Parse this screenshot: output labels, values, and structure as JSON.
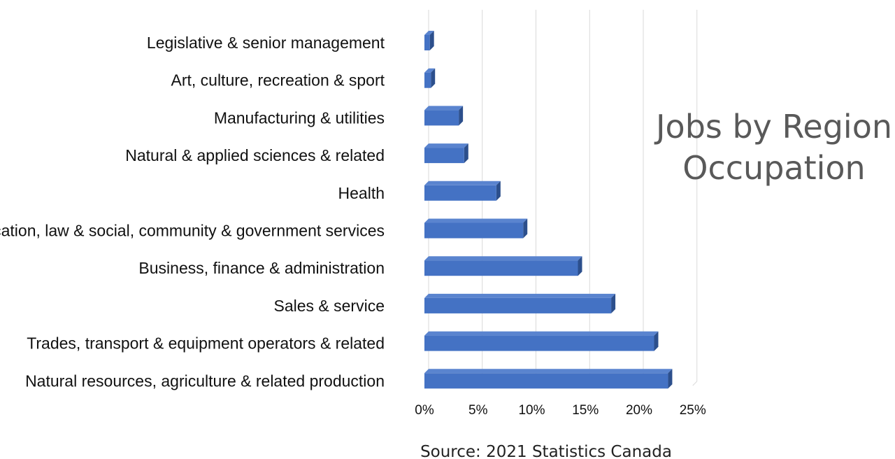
{
  "chart_data": {
    "type": "bar",
    "orientation": "horizontal",
    "title_lines": [
      "Jobs by Region",
      "Occupation"
    ],
    "source": "Source: 2021 Statistics Canada",
    "categories": [
      "Legislative & senior management",
      "Art, culture, recreation & sport",
      "Manufacturing & utilities",
      "Natural & applied sciences & related",
      "Health",
      "Education, law & social, community & government services",
      "Business, finance & administration",
      "Sales & service",
      "Trades, transport & equipment operators & related",
      "Natural resources, agriculture & related production"
    ],
    "values": [
      0.5,
      0.6,
      3.2,
      3.7,
      6.7,
      9.2,
      14.3,
      17.4,
      21.4,
      22.7
    ],
    "unit": "%",
    "xlim": [
      0,
      25
    ],
    "x_ticks": [
      "0%",
      "5%",
      "10%",
      "15%",
      "20%",
      "25%"
    ],
    "x_tick_values": [
      0,
      5,
      10,
      15,
      20,
      25
    ],
    "grid": true,
    "legend": "none",
    "colors": {
      "bar_front": "#4472c4",
      "bar_top": "#5a84cf",
      "bar_side": "#2c4f8c",
      "gridline": "#d9d9d9",
      "title": "#595959"
    }
  }
}
